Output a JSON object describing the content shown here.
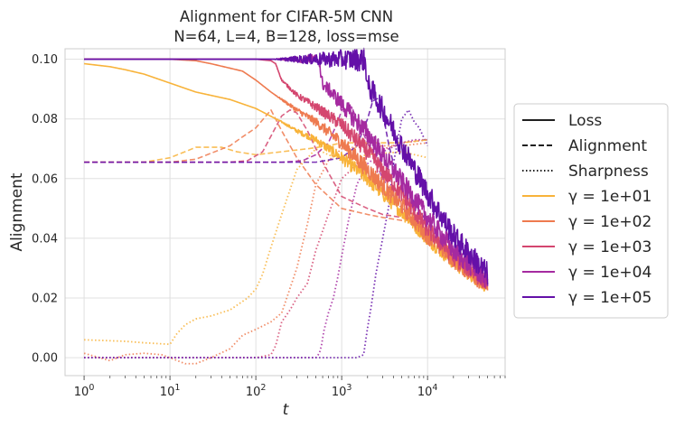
{
  "chart_data": {
    "type": "line",
    "title_line1": "Alignment for CIFAR-5M CNN",
    "title_line2": "N=64, L=4, B=128, loss=mse",
    "xlabel": "t",
    "ylabel": "Alignment",
    "xscale": "log",
    "xlim": [
      0.6,
      80000
    ],
    "ylim": [
      -0.006,
      0.1035
    ],
    "x_ticks": [
      {
        "value": 1,
        "base": "10",
        "exp": "0"
      },
      {
        "value": 10,
        "base": "10",
        "exp": "1"
      },
      {
        "value": 100,
        "base": "10",
        "exp": "2"
      },
      {
        "value": 1000,
        "base": "10",
        "exp": "3"
      },
      {
        "value": 10000,
        "base": "10",
        "exp": "4"
      }
    ],
    "y_ticks": [
      {
        "value": 0.0,
        "label": "0.00"
      },
      {
        "value": 0.02,
        "label": "0.02"
      },
      {
        "value": 0.04,
        "label": "0.04"
      },
      {
        "value": 0.06,
        "label": "0.06"
      },
      {
        "value": 0.08,
        "label": "0.08"
      },
      {
        "value": 0.1,
        "label": "0.10"
      }
    ],
    "legend": {
      "placement": "center-right outside",
      "style_entries": [
        {
          "label": "Loss",
          "dash": "solid"
        },
        {
          "label": "Alignment",
          "dash": "dashed"
        },
        {
          "label": "Sharpness",
          "dash": "dotted"
        }
      ],
      "gamma_entries": [
        {
          "label": "γ = 1e+01",
          "color": "#f8b33a"
        },
        {
          "label": "γ = 1e+02",
          "color": "#ee7a4f"
        },
        {
          "label": "γ = 1e+03",
          "color": "#d4466f"
        },
        {
          "label": "γ = 1e+04",
          "color": "#a52aa0"
        },
        {
          "label": "γ = 1e+05",
          "color": "#6410a8"
        }
      ]
    },
    "series": [
      {
        "name": "Loss γ=1e+01",
        "kind": "loss",
        "color": "#f8b33a",
        "noise": 0.0025,
        "x": [
          1,
          2,
          3,
          5,
          10,
          20,
          50,
          100,
          200,
          300,
          500,
          1000,
          2000,
          3000,
          5000,
          10000,
          20000,
          50000
        ],
        "y": [
          0.0985,
          0.0975,
          0.0965,
          0.095,
          0.092,
          0.089,
          0.0865,
          0.0835,
          0.079,
          0.076,
          0.073,
          0.067,
          0.06,
          0.055,
          0.049,
          0.04,
          0.032,
          0.024
        ]
      },
      {
        "name": "Loss γ=1e+02",
        "kind": "loss",
        "color": "#ee7a4f",
        "noise": 0.003,
        "x": [
          1,
          10,
          20,
          30,
          50,
          70,
          100,
          150,
          200,
          300,
          500,
          1000,
          2000,
          5000,
          10000,
          20000,
          50000
        ],
        "y": [
          0.1,
          0.1,
          0.0995,
          0.0985,
          0.097,
          0.096,
          0.093,
          0.089,
          0.0865,
          0.083,
          0.079,
          0.072,
          0.063,
          0.051,
          0.041,
          0.033,
          0.024
        ]
      },
      {
        "name": "Loss γ=1e+03",
        "kind": "loss",
        "color": "#d4466f",
        "noise": 0.003,
        "x": [
          1,
          100,
          150,
          170,
          200,
          300,
          500,
          1000,
          2000,
          5000,
          10000,
          20000,
          50000
        ],
        "y": [
          0.1,
          0.1,
          0.0995,
          0.0985,
          0.093,
          0.088,
          0.084,
          0.078,
          0.069,
          0.055,
          0.043,
          0.034,
          0.025
        ]
      },
      {
        "name": "Loss γ=1e+04",
        "kind": "loss",
        "color": "#a52aa0",
        "noise": 0.0035,
        "x": [
          1,
          500,
          550,
          580,
          620,
          700,
          1000,
          2000,
          5000,
          10000,
          20000,
          50000
        ],
        "y": [
          0.1,
          0.1,
          0.0995,
          0.093,
          0.091,
          0.09,
          0.085,
          0.075,
          0.059,
          0.047,
          0.036,
          0.026
        ]
      },
      {
        "name": "Loss γ=1e+05",
        "kind": "loss",
        "color": "#6410a8",
        "noise": 0.004,
        "x": [
          1,
          1800,
          1900,
          2000,
          2100,
          2300,
          3000,
          5000,
          10000,
          20000,
          50000
        ],
        "y": [
          0.1,
          0.1,
          0.0985,
          0.091,
          0.0905,
          0.089,
          0.083,
          0.071,
          0.055,
          0.041,
          0.028
        ]
      },
      {
        "name": "Alignment γ=1e+01",
        "kind": "alignment",
        "color": "#f8b33a",
        "x": [
          1,
          5,
          10,
          15,
          20,
          40,
          60,
          100,
          200,
          400,
          700,
          1000,
          2000,
          5000,
          10000
        ],
        "y": [
          0.0655,
          0.0655,
          0.067,
          0.069,
          0.0705,
          0.0705,
          0.069,
          0.068,
          0.069,
          0.07,
          0.071,
          0.072,
          0.072,
          0.072,
          0.073
        ]
      },
      {
        "name": "Alignment γ=1e+02",
        "kind": "alignment",
        "color": "#ee7a4f",
        "x": [
          1,
          10,
          20,
          50,
          70,
          100,
          150,
          200,
          300,
          500,
          1000,
          2000,
          3000,
          5000,
          10000
        ],
        "y": [
          0.0655,
          0.0655,
          0.0665,
          0.071,
          0.074,
          0.077,
          0.083,
          0.076,
          0.067,
          0.058,
          0.05,
          0.048,
          0.047,
          0.046,
          0.046
        ]
      },
      {
        "name": "Alignment γ=1e+03",
        "kind": "alignment",
        "color": "#d4466f",
        "x": [
          1,
          50,
          80,
          120,
          200,
          250,
          300,
          400,
          500,
          700,
          1000,
          2000,
          3000,
          5000,
          10000
        ],
        "y": [
          0.0655,
          0.0655,
          0.066,
          0.069,
          0.081,
          0.083,
          0.082,
          0.076,
          0.07,
          0.062,
          0.054,
          0.05,
          0.048,
          0.047,
          0.046
        ]
      },
      {
        "name": "Alignment γ=1e+04",
        "kind": "alignment",
        "color": "#a52aa0",
        "x": [
          1,
          200,
          350,
          500,
          700,
          900,
          1000,
          1300,
          2000,
          3000,
          5000,
          10000
        ],
        "y": [
          0.0655,
          0.0655,
          0.066,
          0.068,
          0.072,
          0.079,
          0.083,
          0.084,
          0.072,
          0.06,
          0.05,
          0.045
        ]
      },
      {
        "name": "Alignment γ=1e+05",
        "kind": "alignment",
        "color": "#6410a8",
        "x": [
          1,
          500,
          1000,
          1500,
          2000,
          2300,
          2700,
          3000,
          3500,
          4000,
          5000,
          7000,
          10000
        ],
        "y": [
          0.0655,
          0.0655,
          0.067,
          0.071,
          0.08,
          0.086,
          0.087,
          0.082,
          0.072,
          0.065,
          0.06,
          0.052,
          0.045
        ]
      },
      {
        "name": "Sharpness γ=1e+01",
        "kind": "sharpness",
        "color": "#f8b33a",
        "x": [
          1,
          3,
          5,
          10,
          12,
          15,
          20,
          30,
          50,
          80,
          100,
          120,
          150,
          200,
          300,
          500,
          700,
          1000,
          2000,
          5000,
          10000
        ],
        "y": [
          0.006,
          0.0055,
          0.005,
          0.0045,
          0.008,
          0.011,
          0.013,
          0.014,
          0.016,
          0.02,
          0.023,
          0.028,
          0.037,
          0.048,
          0.063,
          0.07,
          0.068,
          0.066,
          0.068,
          0.069,
          0.067
        ]
      },
      {
        "name": "Sharpness γ=1e+02",
        "kind": "sharpness",
        "color": "#ee7a4f",
        "x": [
          1,
          2,
          3,
          5,
          8,
          10,
          15,
          20,
          30,
          50,
          70,
          100,
          150,
          200,
          300,
          400,
          500,
          700,
          1000,
          2000,
          5000,
          10000
        ],
        "y": [
          0.0015,
          -0.001,
          0.001,
          0.0015,
          0.001,
          0.0,
          -0.002,
          -0.002,
          0.0,
          0.003,
          0.0075,
          0.0095,
          0.012,
          0.015,
          0.03,
          0.045,
          0.058,
          0.066,
          0.07,
          0.071,
          0.071,
          0.072
        ]
      },
      {
        "name": "Sharpness γ=1e+03",
        "kind": "sharpness",
        "color": "#d4466f",
        "x": [
          1,
          10,
          50,
          100,
          150,
          170,
          200,
          250,
          300,
          400,
          500,
          700,
          1000,
          2000,
          5000,
          10000
        ],
        "y": [
          0.0,
          0.0,
          0.0,
          0.0,
          0.001,
          0.004,
          0.012,
          0.016,
          0.02,
          0.025,
          0.036,
          0.048,
          0.06,
          0.068,
          0.072,
          0.073
        ]
      },
      {
        "name": "Sharpness γ=1e+04",
        "kind": "sharpness",
        "color": "#a52aa0",
        "x": [
          1,
          100,
          500,
          550,
          580,
          620,
          700,
          800,
          900,
          1000,
          1200,
          1500,
          2000,
          3000,
          5000,
          7000,
          10000
        ],
        "y": [
          0.0,
          0.0,
          0.0,
          0.0015,
          0.004,
          0.009,
          0.015,
          0.02,
          0.027,
          0.034,
          0.046,
          0.058,
          0.065,
          0.069,
          0.072,
          0.073,
          0.073
        ]
      },
      {
        "name": "Sharpness γ=1e+05",
        "kind": "sharpness",
        "color": "#6410a8",
        "x": [
          1,
          500,
          1000,
          1500,
          1800,
          2000,
          2200,
          2500,
          3000,
          3500,
          4000,
          5000,
          6000,
          7000,
          8000,
          10000
        ],
        "y": [
          0.0,
          0.0,
          0.0,
          0.0,
          0.001,
          0.01,
          0.017,
          0.028,
          0.04,
          0.05,
          0.065,
          0.08,
          0.083,
          0.079,
          0.077,
          0.071
        ]
      }
    ]
  }
}
